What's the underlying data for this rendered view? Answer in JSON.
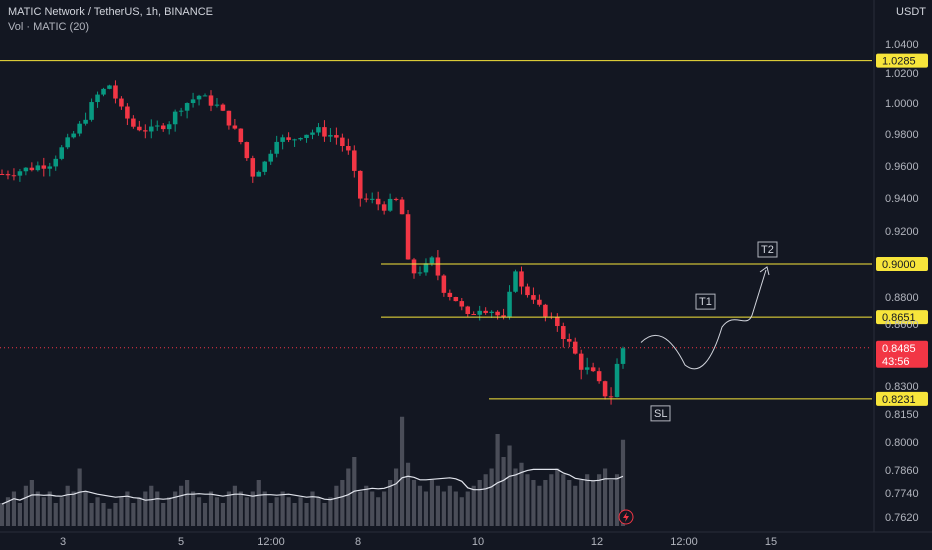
{
  "header": {
    "symbol": "MATIC Network / TetherUS, 1h, BINANCE",
    "indicator": "Vol · MATIC (20)",
    "currency": "USDT"
  },
  "chart_data": {
    "type": "candlestick",
    "x_ticks": [
      "3",
      "5",
      "12:00",
      "8",
      "10",
      "12",
      "12:00",
      "15"
    ],
    "y_ticks": [
      1.04,
      1.02,
      1.0,
      0.98,
      0.96,
      0.94,
      0.92,
      0.88,
      0.86,
      0.83,
      0.815,
      0.8,
      0.786,
      0.774,
      0.762
    ],
    "y_tick_labels": [
      "1.0400",
      "1.0200",
      "1.0000",
      "0.9800",
      "0.9600",
      "0.9400",
      "0.9200",
      "0.8800",
      "0.8600",
      "0.8300",
      "0.8150",
      "0.8000",
      "0.7860",
      "0.7740",
      "0.7620"
    ],
    "price_keypoints": [
      [
        0,
        0.955
      ],
      [
        4,
        0.958
      ],
      [
        8,
        0.962
      ],
      [
        11,
        0.975
      ],
      [
        13,
        0.985
      ],
      [
        16,
        1.005
      ],
      [
        18,
        1.012
      ],
      [
        20,
        0.995
      ],
      [
        22,
        0.985
      ],
      [
        25,
        0.982
      ],
      [
        28,
        0.988
      ],
      [
        30,
        0.998
      ],
      [
        33,
        1.005
      ],
      [
        36,
        0.998
      ],
      [
        38,
        0.988
      ],
      [
        40,
        0.975
      ],
      [
        42,
        0.955
      ],
      [
        44,
        0.962
      ],
      [
        46,
        0.978
      ],
      [
        48,
        0.975
      ],
      [
        50,
        0.98
      ],
      [
        53,
        0.982
      ],
      [
        56,
        0.978
      ],
      [
        58,
        0.968
      ],
      [
        60,
        0.94
      ],
      [
        62,
        0.938
      ],
      [
        64,
        0.935
      ],
      [
        66,
        0.938
      ],
      [
        67,
        0.93
      ],
      [
        68,
        0.9
      ],
      [
        69,
        0.895
      ],
      [
        71,
        0.898
      ],
      [
        72,
        0.902
      ],
      [
        74,
        0.885
      ],
      [
        76,
        0.878
      ],
      [
        78,
        0.865
      ],
      [
        80,
        0.872
      ],
      [
        82,
        0.87
      ],
      [
        84,
        0.863
      ],
      [
        86,
        0.898
      ],
      [
        87,
        0.885
      ],
      [
        89,
        0.88
      ],
      [
        91,
        0.865
      ],
      [
        93,
        0.86
      ],
      [
        95,
        0.85
      ],
      [
        97,
        0.84
      ],
      [
        99,
        0.835
      ],
      [
        100,
        0.83
      ],
      [
        101,
        0.826
      ],
      [
        102,
        0.825
      ],
      [
        103,
        0.84
      ],
      [
        104,
        0.8485
      ]
    ],
    "candle_count": 105,
    "volume_profile": [
      0.2,
      0.25,
      0.3,
      0.2,
      0.35,
      0.4,
      0.3,
      0.25,
      0.3,
      0.2,
      0.25,
      0.35,
      0.3,
      0.5,
      0.3,
      0.2,
      0.25,
      0.2,
      0.15,
      0.2,
      0.25,
      0.3,
      0.2,
      0.25,
      0.3,
      0.35,
      0.3,
      0.2,
      0.25,
      0.3,
      0.35,
      0.4,
      0.3,
      0.25,
      0.2,
      0.3,
      0.25,
      0.2,
      0.3,
      0.35,
      0.3,
      0.25,
      0.3,
      0.4,
      0.3,
      0.2,
      0.25,
      0.3,
      0.25,
      0.2,
      0.25,
      0.2,
      0.3,
      0.25,
      0.2,
      0.25,
      0.35,
      0.4,
      0.5,
      0.6,
      0.3,
      0.35,
      0.3,
      0.25,
      0.3,
      0.4,
      0.5,
      0.95,
      0.55,
      0.4,
      0.35,
      0.3,
      0.4,
      0.35,
      0.3,
      0.35,
      0.3,
      0.25,
      0.3,
      0.35,
      0.4,
      0.45,
      0.5,
      0.8,
      0.6,
      0.7,
      0.5,
      0.55,
      0.45,
      0.4,
      0.35,
      0.4,
      0.45,
      0.5,
      0.45,
      0.4,
      0.35,
      0.4,
      0.45,
      0.4,
      0.45,
      0.5,
      0.4,
      0.45,
      0.75
    ],
    "horizontal_levels": [
      {
        "label": "1.0285",
        "price": 1.0285,
        "color": "#f7e53b"
      },
      {
        "label": "0.9000",
        "price": 0.9,
        "color": "#f7e53b"
      },
      {
        "label": "0.8651",
        "price": 0.8651,
        "color": "#f7e53b"
      },
      {
        "label": "0.8231",
        "price": 0.8231,
        "color": "#f7e53b"
      }
    ],
    "current_price": {
      "label": "0.8485",
      "countdown": "43:56",
      "price": 0.8485,
      "color": "#f23645"
    },
    "annotations": [
      {
        "label": "T2",
        "price": 0.9
      },
      {
        "label": "T1",
        "price": 0.8651
      },
      {
        "label": "SL",
        "price": 0.8231
      }
    ],
    "colors": {
      "up": "#089981",
      "down": "#f23645",
      "background": "#131722",
      "level": "#f7e53b",
      "volume_ma": "#e0e3eb"
    }
  }
}
